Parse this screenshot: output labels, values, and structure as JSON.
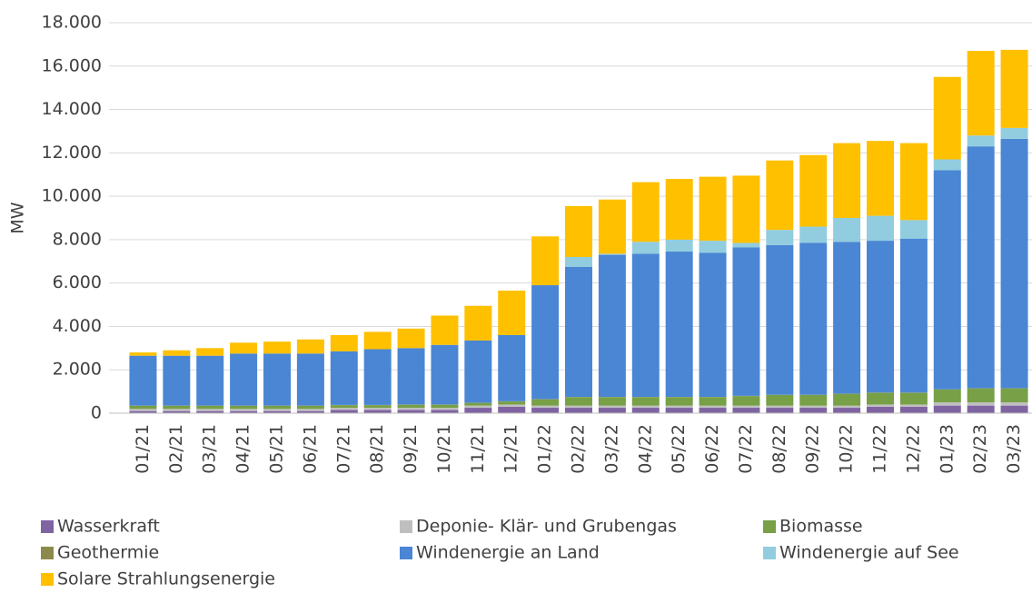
{
  "chart_data": {
    "type": "stacked_bar",
    "y_label": "MW",
    "categories": [
      "01/21",
      "02/21",
      "03/21",
      "04/21",
      "05/21",
      "06/21",
      "07/21",
      "08/21",
      "09/21",
      "10/21",
      "11/21",
      "12/21",
      "01/22",
      "02/22",
      "03/22",
      "04/22",
      "05/22",
      "06/22",
      "07/22",
      "08/22",
      "09/22",
      "10/22",
      "11/22",
      "12/22",
      "01/23",
      "02/23",
      "03/23"
    ],
    "series": [
      {
        "name": "Wasserkraft",
        "color": "#8064a2",
        "values": [
          100,
          100,
          100,
          100,
          100,
          100,
          150,
          150,
          150,
          150,
          250,
          300,
          250,
          250,
          250,
          250,
          250,
          250,
          250,
          250,
          250,
          250,
          300,
          300,
          350,
          350,
          350
        ]
      },
      {
        "name": "Deponie- Klär- und Grubengas",
        "color": "#bfbfbf",
        "values": [
          100,
          100,
          100,
          100,
          100,
          100,
          100,
          100,
          100,
          100,
          100,
          100,
          100,
          100,
          100,
          100,
          100,
          100,
          100,
          100,
          100,
          100,
          100,
          100,
          150,
          150,
          150
        ]
      },
      {
        "name": "Biomasse",
        "color": "#77a047",
        "values": [
          140,
          140,
          140,
          140,
          140,
          140,
          120,
          120,
          140,
          140,
          120,
          140,
          290,
          390,
          390,
          390,
          390,
          390,
          440,
          490,
          490,
          540,
          540,
          540,
          590,
          640,
          640
        ]
      },
      {
        "name": "Geothermie",
        "color": "#8b8a4b",
        "values": [
          10,
          10,
          10,
          10,
          10,
          10,
          10,
          10,
          10,
          10,
          10,
          10,
          10,
          10,
          10,
          10,
          10,
          10,
          10,
          10,
          10,
          10,
          10,
          10,
          10,
          10,
          10
        ]
      },
      {
        "name": "Windenergie an Land",
        "color": "#4a86d4",
        "values": [
          2300,
          2300,
          2300,
          2400,
          2400,
          2400,
          2470,
          2570,
          2600,
          2750,
          2870,
          3050,
          5250,
          6000,
          6550,
          6600,
          6700,
          6650,
          6850,
          6900,
          7000,
          7000,
          7000,
          7100,
          10100,
          11150,
          11500
        ]
      },
      {
        "name": "Windenergie auf See",
        "color": "#92cddf",
        "values": [
          0,
          0,
          0,
          0,
          0,
          0,
          0,
          0,
          0,
          0,
          0,
          0,
          0,
          450,
          50,
          550,
          550,
          550,
          200,
          700,
          750,
          1100,
          1150,
          850,
          500,
          500,
          500
        ]
      },
      {
        "name": "Solare Strahlungsenergie",
        "color": "#ffc000",
        "values": [
          150,
          250,
          350,
          500,
          550,
          650,
          750,
          800,
          900,
          1350,
          1600,
          2050,
          2250,
          2350,
          2500,
          2750,
          2800,
          2950,
          3100,
          3200,
          3300,
          3450,
          3450,
          3550,
          3800,
          3900,
          3600
        ]
      }
    ],
    "ylim": [
      0,
      18000
    ],
    "yticks": [
      0,
      {
        "value": 2000,
        "label": "2.000"
      },
      {
        "value": 4000,
        "label": "4.000"
      },
      {
        "value": 6000,
        "label": "6.000"
      },
      {
        "value": 8000,
        "label": "8.000"
      },
      {
        "value": 10000,
        "label": "10.000"
      },
      {
        "value": 12000,
        "label": "12.000"
      },
      {
        "value": 14000,
        "label": "14.000"
      },
      {
        "value": 16000,
        "label": "16.000"
      },
      {
        "value": 18000,
        "label": "18.000"
      }
    ],
    "grid": true
  }
}
